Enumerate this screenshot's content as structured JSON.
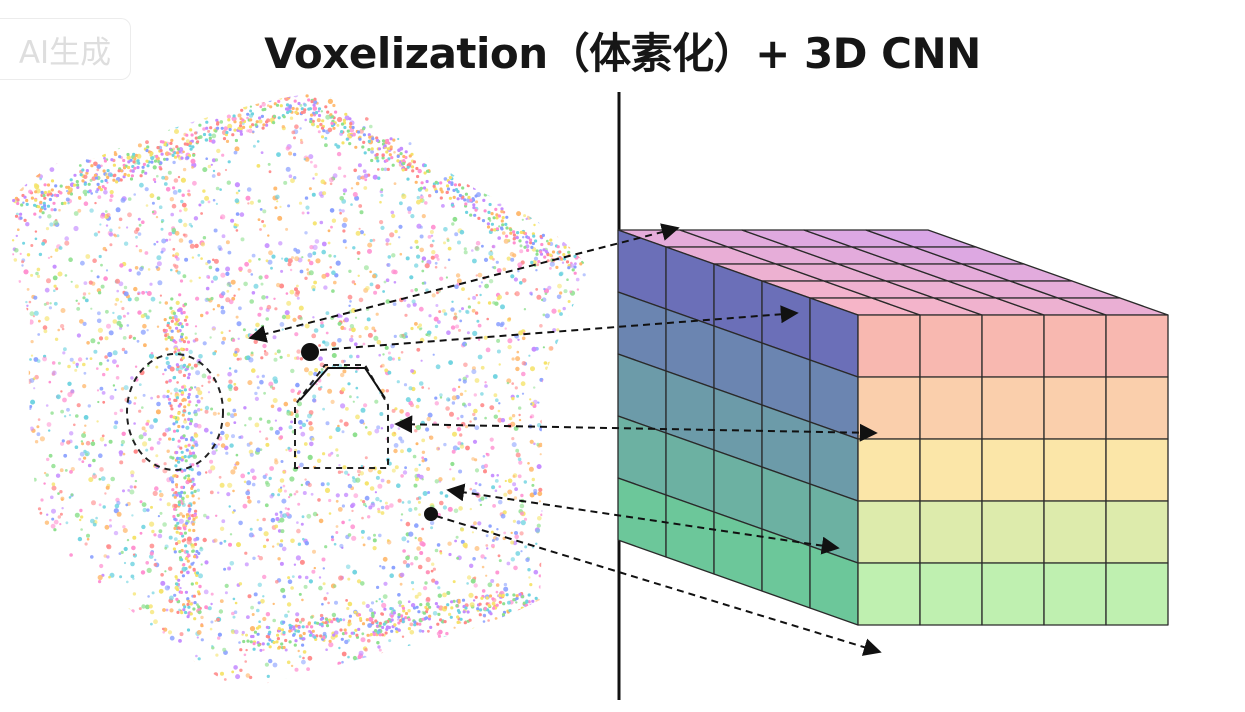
{
  "title": "Voxelization（体素化）+ 3D CNN",
  "badge": "AI生成",
  "left_panel": {
    "kind": "point cloud",
    "marks": [
      "dashed ellipse",
      "dashed trapezoid",
      "dot markers"
    ]
  },
  "right_panel": {
    "kind": "voxel grid",
    "grid": [
      5,
      5,
      5
    ]
  },
  "colors": {
    "grid_top_start": "#d9a6e6",
    "grid_top_end": "#f6b5c8",
    "grid_front_top": "#f8b8b0",
    "grid_front_mid": "#fbe6a8",
    "grid_front_bottom": "#bff0b0",
    "grid_side_top": "#6b6fb8",
    "grid_side_bottom": "#6cc79a",
    "point_palette": [
      "#ff8a8a",
      "#ffb86c",
      "#f5e36a",
      "#8fe08f",
      "#6fd3e0",
      "#8aa0ff",
      "#c58cff",
      "#ff8fd0"
    ],
    "divider": "#111111"
  }
}
